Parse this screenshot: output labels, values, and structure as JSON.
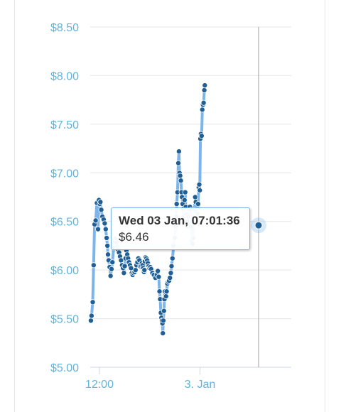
{
  "colors": {
    "series": "#7cb5ec",
    "marker": "#1f5f96",
    "axis_label": "#5fb4dc",
    "grid": "#e6e6e6",
    "crosshair": "#a0a0a0",
    "tooltip_border": "#7cb5ec"
  },
  "tooltip": {
    "title": "Wed 03 Jan, 07:01:36",
    "value": "$6.46"
  },
  "chart_data": {
    "type": "line",
    "title": "",
    "xlabel": "",
    "ylabel": "",
    "grid": true,
    "legend": "none",
    "x_axis": {
      "unit": "hours",
      "range": [
        10.9,
        34.9
      ],
      "ticks": [
        {
          "value": 12,
          "label": "12:00"
        },
        {
          "value": 24,
          "label": "3. Jan"
        }
      ]
    },
    "y_axis": {
      "range": [
        5.0,
        8.5
      ],
      "ticks": [
        {
          "value": 5.0,
          "label": "$5.00"
        },
        {
          "value": 5.5,
          "label": "$5.50"
        },
        {
          "value": 6.0,
          "label": "$6.00"
        },
        {
          "value": 6.5,
          "label": "$6.50"
        },
        {
          "value": 7.0,
          "label": "$7.00"
        },
        {
          "value": 7.5,
          "label": "$7.50"
        },
        {
          "value": 8.0,
          "label": "$8.00"
        },
        {
          "value": 8.5,
          "label": "$8.50"
        }
      ]
    },
    "crosshair_x": 31.0,
    "highlight": {
      "x": 31.0,
      "y": 6.46
    },
    "series": [
      {
        "values": [
          [
            10.98,
            5.48
          ],
          [
            11.06,
            5.53
          ],
          [
            11.2,
            5.67
          ],
          [
            11.31,
            6.05
          ],
          [
            11.42,
            6.47
          ],
          [
            11.55,
            6.51
          ],
          [
            11.7,
            6.69
          ],
          [
            11.83,
            6.42
          ],
          [
            11.94,
            6.72
          ],
          [
            12.04,
            6.68
          ],
          [
            12.12,
            6.7
          ],
          [
            12.22,
            6.62
          ],
          [
            12.35,
            6.55
          ],
          [
            12.5,
            6.52
          ],
          [
            12.63,
            6.48
          ],
          [
            12.75,
            6.42
          ],
          [
            12.86,
            6.33
          ],
          [
            12.95,
            6.25
          ],
          [
            13.02,
            6.16
          ],
          [
            13.1,
            6.1
          ],
          [
            13.22,
            6.03
          ],
          [
            13.33,
            5.94
          ],
          [
            13.44,
            6.01
          ],
          [
            13.55,
            6.08
          ],
          [
            13.7,
            6.23
          ],
          [
            13.82,
            6.3
          ],
          [
            13.92,
            6.32
          ],
          [
            14.02,
            6.28
          ],
          [
            14.12,
            6.24
          ],
          [
            14.22,
            6.21
          ],
          [
            14.34,
            6.18
          ],
          [
            14.46,
            6.14
          ],
          [
            14.58,
            6.1
          ],
          [
            14.7,
            6.05
          ],
          [
            14.82,
            6.02
          ],
          [
            14.92,
            5.97
          ],
          [
            15.02,
            6.04
          ],
          [
            15.12,
            6.12
          ],
          [
            15.22,
            6.2
          ],
          [
            15.32,
            6.16
          ],
          [
            15.42,
            6.12
          ],
          [
            15.53,
            6.08
          ],
          [
            15.65,
            6.05
          ],
          [
            15.77,
            6.02
          ],
          [
            15.87,
            5.97
          ],
          [
            15.97,
            5.95
          ],
          [
            16.08,
            5.97
          ],
          [
            16.2,
            5.98
          ],
          [
            16.31,
            6.0
          ],
          [
            16.42,
            6.05
          ],
          [
            16.53,
            6.08
          ],
          [
            16.65,
            6.12
          ],
          [
            16.77,
            6.1
          ],
          [
            16.87,
            6.04
          ],
          [
            16.97,
            6.05
          ],
          [
            17.06,
            6.07
          ],
          [
            17.15,
            6.05
          ],
          [
            17.22,
            6.02
          ],
          [
            17.27,
            5.99
          ],
          [
            17.32,
            5.98
          ],
          [
            17.37,
            6.0
          ],
          [
            17.42,
            6.09
          ],
          [
            17.5,
            6.13
          ],
          [
            17.6,
            6.12
          ],
          [
            17.69,
            6.1
          ],
          [
            17.78,
            6.07
          ],
          [
            17.88,
            6.04
          ],
          [
            17.97,
            6.02
          ],
          [
            18.07,
            6.03
          ],
          [
            18.17,
            6.01
          ],
          [
            18.32,
            5.97
          ],
          [
            18.5,
            5.95
          ],
          [
            18.68,
            5.92
          ],
          [
            18.85,
            5.95
          ],
          [
            18.97,
            5.99
          ],
          [
            19.08,
            5.93
          ],
          [
            19.17,
            5.78
          ],
          [
            19.25,
            5.7
          ],
          [
            19.33,
            5.56
          ],
          [
            19.4,
            5.51
          ],
          [
            19.46,
            5.48
          ],
          [
            19.52,
            5.45
          ],
          [
            19.57,
            5.35
          ],
          [
            19.63,
            5.48
          ],
          [
            19.7,
            5.58
          ],
          [
            19.76,
            5.7
          ],
          [
            19.82,
            5.78
          ],
          [
            19.88,
            5.74
          ],
          [
            19.95,
            5.73
          ],
          [
            20.02,
            5.78
          ],
          [
            20.1,
            5.86
          ],
          [
            20.2,
            5.88
          ],
          [
            20.31,
            5.89
          ],
          [
            20.42,
            5.92
          ],
          [
            20.52,
            5.97
          ],
          [
            20.61,
            6.04
          ],
          [
            20.72,
            6.12
          ],
          [
            20.86,
            6.25
          ],
          [
            21.0,
            6.33
          ],
          [
            21.09,
            6.45
          ],
          [
            21.16,
            6.55
          ],
          [
            21.22,
            6.68
          ],
          [
            21.32,
            6.8
          ],
          [
            21.42,
            7.1
          ],
          [
            21.49,
            7.22
          ],
          [
            21.56,
            7.0
          ],
          [
            21.64,
            6.97
          ],
          [
            21.72,
            6.92
          ],
          [
            21.8,
            6.8
          ],
          [
            21.86,
            6.75
          ],
          [
            21.93,
            6.68
          ],
          [
            22.0,
            6.63
          ],
          [
            22.08,
            6.55
          ],
          [
            22.16,
            6.72
          ],
          [
            22.24,
            6.8
          ],
          [
            22.31,
            6.65
          ],
          [
            22.38,
            6.57
          ],
          [
            22.46,
            6.5
          ],
          [
            22.53,
            6.45
          ],
          [
            22.6,
            6.55
          ],
          [
            22.7,
            6.62
          ],
          [
            22.8,
            6.65
          ],
          [
            22.9,
            6.62
          ],
          [
            22.98,
            6.45
          ],
          [
            23.05,
            6.3
          ],
          [
            23.12,
            6.27
          ],
          [
            23.2,
            6.33
          ],
          [
            23.28,
            6.48
          ],
          [
            23.35,
            6.62
          ],
          [
            23.43,
            6.75
          ],
          [
            23.5,
            6.7
          ],
          [
            23.57,
            6.6
          ],
          [
            23.64,
            6.55
          ],
          [
            23.71,
            6.58
          ],
          [
            23.78,
            6.68
          ],
          [
            23.86,
            6.85
          ],
          [
            23.92,
            6.88
          ],
          [
            23.98,
            6.82
          ],
          [
            24.05,
            7.35
          ],
          [
            24.12,
            7.4
          ],
          [
            24.2,
            7.38
          ],
          [
            24.28,
            7.65
          ],
          [
            24.36,
            7.7
          ],
          [
            24.44,
            7.72
          ],
          [
            24.52,
            7.85
          ],
          [
            24.58,
            7.9
          ]
        ]
      }
    ]
  }
}
